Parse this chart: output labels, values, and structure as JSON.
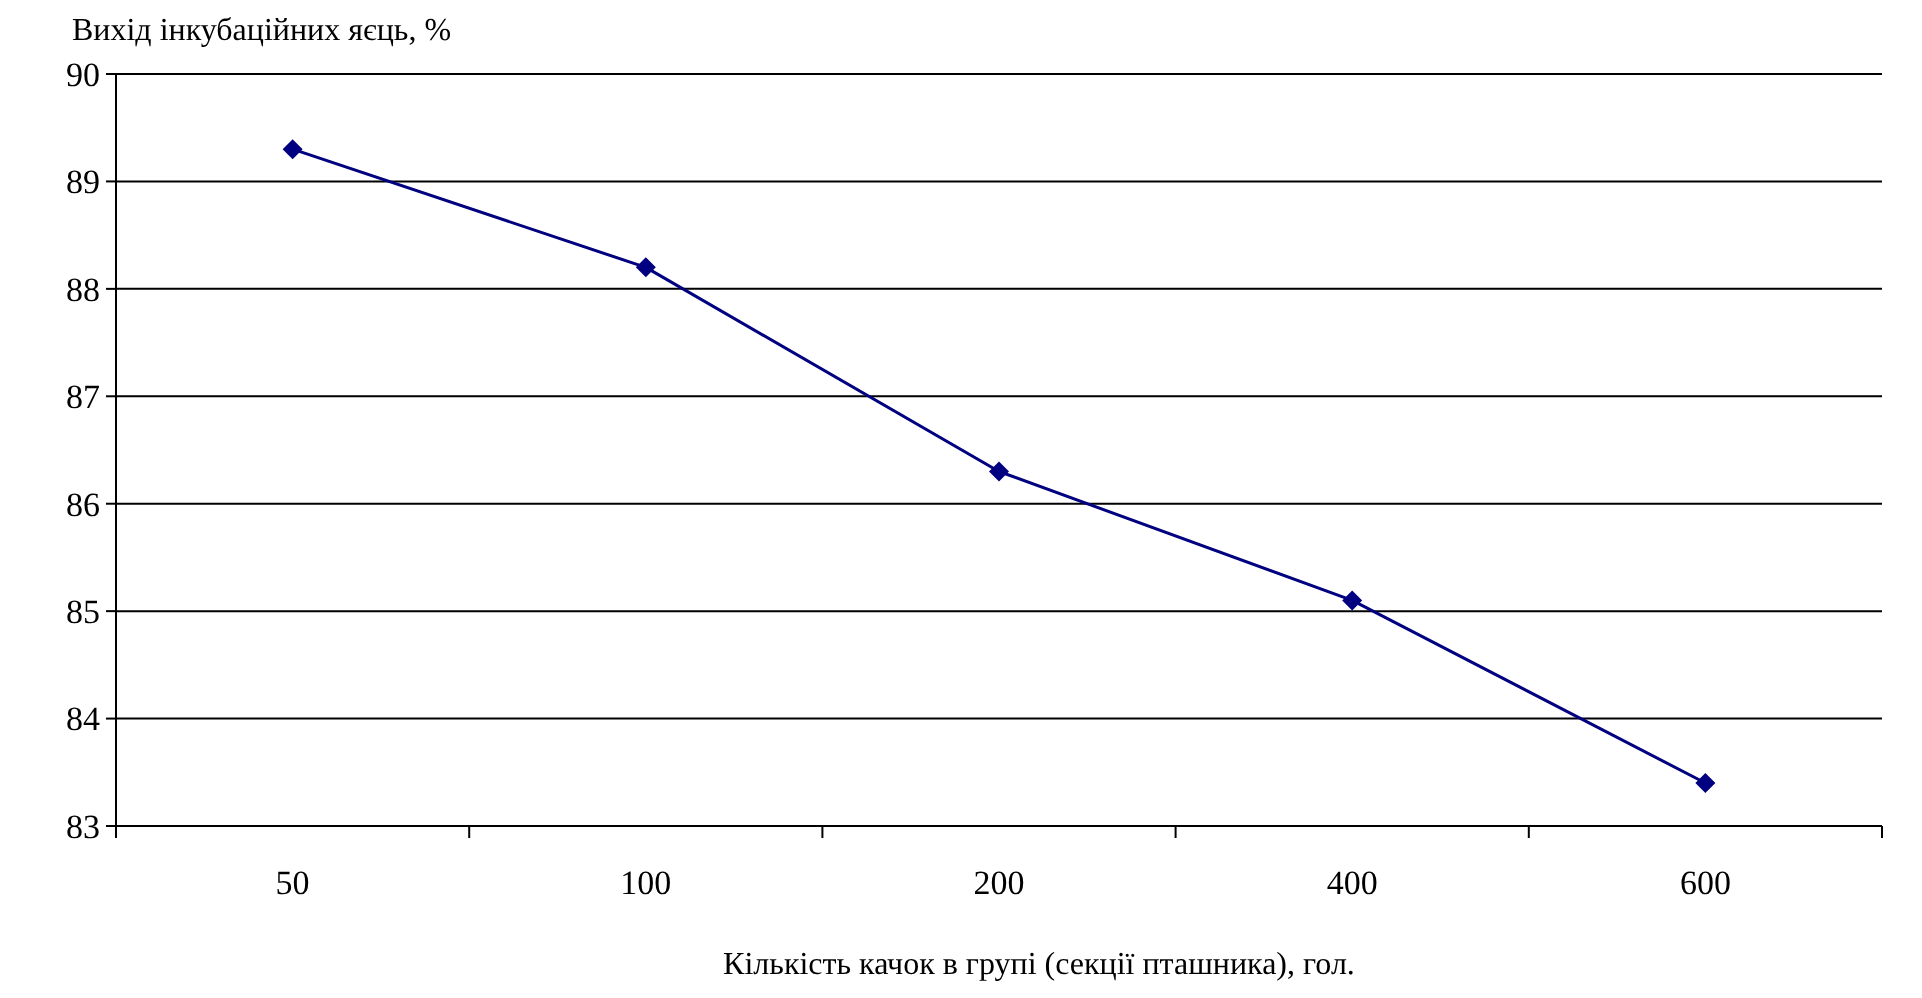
{
  "chart_data": {
    "type": "line",
    "ylabel": "Вихід інкубаційних яєць, %",
    "xlabel": "Кількість качок в групі (секції пташника), гол.",
    "categories": [
      "50",
      "100",
      "200",
      "400",
      "600"
    ],
    "series": [
      {
        "color": "#000080",
        "values": [
          89.3,
          88.2,
          86.3,
          85.1,
          83.4
        ]
      }
    ],
    "ylim": [
      83,
      90
    ],
    "yticks": [
      83,
      84,
      85,
      86,
      87,
      88,
      89,
      90
    ],
    "grid": "y",
    "marker": "diamond",
    "line_style": "solid"
  }
}
